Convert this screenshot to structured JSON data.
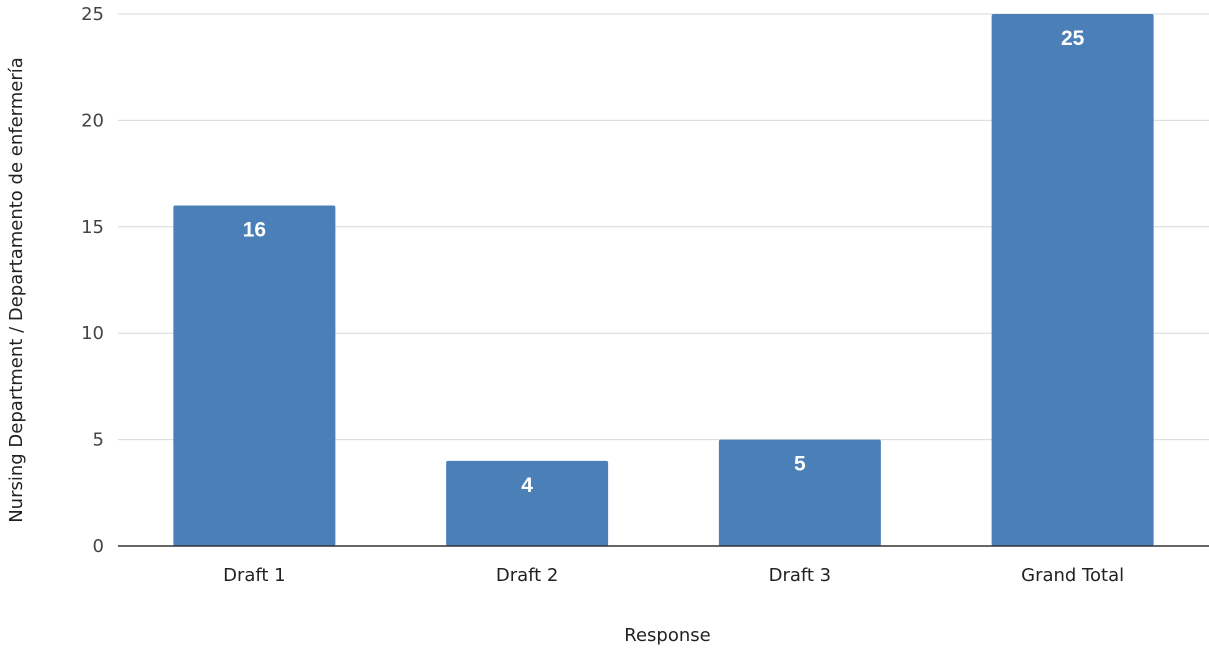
{
  "chart_data": {
    "type": "bar",
    "title": "",
    "xlabel": "Response",
    "ylabel": "Nursing Department / Departamento de enfermería",
    "categories": [
      "Draft 1",
      "Draft 2",
      "Draft 3",
      "Grand Total"
    ],
    "values": [
      16,
      4,
      5,
      25
    ],
    "ylim": [
      0,
      25
    ],
    "yticks": [
      0,
      5,
      10,
      15,
      20,
      25
    ],
    "grid": true,
    "legend": "none",
    "data_labels": [
      "16",
      "4",
      "5",
      "25"
    ],
    "bar_color": "#4a7fb8"
  }
}
